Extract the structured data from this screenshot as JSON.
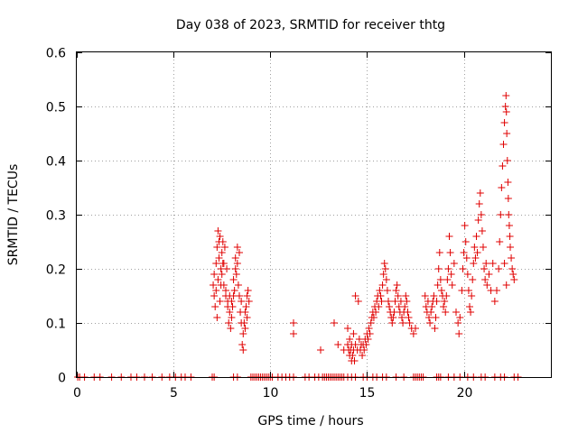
{
  "chart_data": {
    "type": "scatter",
    "title": "Day 038 of 2023, SRMTID for receiver thtg",
    "xlabel": "GPS time / hours",
    "ylabel": "SRMTID / TECUs",
    "xlim": [
      0,
      24.5
    ],
    "ylim": [
      0,
      0.6
    ],
    "xticks": [
      0,
      5,
      10,
      15,
      20
    ],
    "yticks": [
      0,
      0.1,
      0.2,
      0.3,
      0.4,
      0.5,
      0.6
    ],
    "xtick_labels": [
      "0",
      "5",
      "10",
      "15",
      "20"
    ],
    "ytick_labels": [
      "0",
      "0.1",
      "0.2",
      "0.3",
      "0.4",
      "0.5",
      "0.6"
    ],
    "grid": true,
    "marker": "+",
    "series": [
      {
        "name": "SRMTID",
        "color": "#e00000",
        "points": [
          [
            0.05,
            0
          ],
          [
            0.15,
            0
          ],
          [
            0.4,
            0
          ],
          [
            0.9,
            0
          ],
          [
            1.2,
            0
          ],
          [
            1.8,
            0
          ],
          [
            2.3,
            0
          ],
          [
            2.8,
            0
          ],
          [
            3.1,
            0
          ],
          [
            3.5,
            0
          ],
          [
            3.9,
            0
          ],
          [
            4.4,
            0
          ],
          [
            4.8,
            0
          ],
          [
            5.1,
            0
          ],
          [
            5.4,
            0
          ],
          [
            5.6,
            0
          ],
          [
            5.9,
            0
          ],
          [
            7.0,
            0
          ],
          [
            7.1,
            0
          ],
          [
            8.1,
            0
          ],
          [
            8.3,
            0
          ],
          [
            9.0,
            0
          ],
          [
            9.1,
            0
          ],
          [
            9.2,
            0
          ],
          [
            9.3,
            0
          ],
          [
            9.4,
            0
          ],
          [
            9.5,
            0
          ],
          [
            9.6,
            0
          ],
          [
            9.7,
            0
          ],
          [
            9.8,
            0
          ],
          [
            9.9,
            0
          ],
          [
            10.0,
            0
          ],
          [
            10.1,
            0
          ],
          [
            10.4,
            0
          ],
          [
            10.6,
            0
          ],
          [
            10.8,
            0
          ],
          [
            11.0,
            0
          ],
          [
            11.2,
            0
          ],
          [
            11.8,
            0
          ],
          [
            12.0,
            0
          ],
          [
            12.3,
            0
          ],
          [
            12.5,
            0
          ],
          [
            12.7,
            0
          ],
          [
            12.8,
            0
          ],
          [
            12.9,
            0
          ],
          [
            13.0,
            0
          ],
          [
            13.1,
            0
          ],
          [
            13.2,
            0
          ],
          [
            13.3,
            0
          ],
          [
            13.4,
            0
          ],
          [
            13.5,
            0
          ],
          [
            13.6,
            0
          ],
          [
            13.7,
            0
          ],
          [
            13.8,
            0
          ],
          [
            14.0,
            0
          ],
          [
            14.2,
            0
          ],
          [
            14.4,
            0
          ],
          [
            14.8,
            0
          ],
          [
            15.0,
            0
          ],
          [
            15.3,
            0
          ],
          [
            15.5,
            0
          ],
          [
            15.8,
            0
          ],
          [
            16.0,
            0
          ],
          [
            16.5,
            0
          ],
          [
            16.9,
            0
          ],
          [
            17.4,
            0
          ],
          [
            17.5,
            0
          ],
          [
            17.6,
            0
          ],
          [
            17.7,
            0
          ],
          [
            17.8,
            0
          ],
          [
            17.9,
            0
          ],
          [
            18.6,
            0
          ],
          [
            18.7,
            0
          ],
          [
            18.8,
            0
          ],
          [
            19.2,
            0
          ],
          [
            19.5,
            0
          ],
          [
            19.8,
            0
          ],
          [
            20.2,
            0
          ],
          [
            20.5,
            0
          ],
          [
            20.9,
            0
          ],
          [
            21.1,
            0
          ],
          [
            21.6,
            0
          ],
          [
            21.9,
            0
          ],
          [
            22.1,
            0
          ],
          [
            22.6,
            0
          ],
          [
            22.8,
            0
          ],
          [
            7.05,
            0.17
          ],
          [
            7.1,
            0.15
          ],
          [
            7.1,
            0.19
          ],
          [
            7.15,
            0.13
          ],
          [
            7.2,
            0.16
          ],
          [
            7.2,
            0.21
          ],
          [
            7.25,
            0.11
          ],
          [
            7.25,
            0.24
          ],
          [
            7.3,
            0.27
          ],
          [
            7.3,
            0.18
          ],
          [
            7.35,
            0.22
          ],
          [
            7.4,
            0.26
          ],
          [
            7.4,
            0.14
          ],
          [
            7.45,
            0.2
          ],
          [
            7.5,
            0.23
          ],
          [
            7.5,
            0.19
          ],
          [
            7.55,
            0.25
          ],
          [
            7.6,
            0.17
          ],
          [
            7.6,
            0.21
          ],
          [
            7.65,
            0.24
          ],
          [
            7.7,
            0.16
          ],
          [
            7.7,
            0.15
          ],
          [
            7.75,
            0.2
          ],
          [
            7.8,
            0.13
          ],
          [
            7.8,
            0.14
          ],
          [
            7.85,
            0.1
          ],
          [
            7.9,
            0.12
          ],
          [
            7.9,
            0.15
          ],
          [
            7.95,
            0.09
          ],
          [
            8.0,
            0.11
          ],
          [
            8.0,
            0.14
          ],
          [
            8.05,
            0.13
          ],
          [
            8.1,
            0.15
          ],
          [
            8.1,
            0.18
          ],
          [
            8.15,
            0.16
          ],
          [
            8.2,
            0.2
          ],
          [
            8.2,
            0.22
          ],
          [
            8.25,
            0.19
          ],
          [
            8.3,
            0.21
          ],
          [
            8.3,
            0.24
          ],
          [
            8.35,
            0.17
          ],
          [
            8.4,
            0.15
          ],
          [
            8.4,
            0.23
          ],
          [
            8.45,
            0.12
          ],
          [
            8.5,
            0.1
          ],
          [
            8.5,
            0.14
          ],
          [
            8.55,
            0.06
          ],
          [
            8.6,
            0.05
          ],
          [
            8.6,
            0.08
          ],
          [
            8.65,
            0.1
          ],
          [
            8.7,
            0.12
          ],
          [
            8.7,
            0.09
          ],
          [
            8.75,
            0.13
          ],
          [
            8.8,
            0.15
          ],
          [
            8.8,
            0.11
          ],
          [
            8.85,
            0.16
          ],
          [
            8.9,
            0.14
          ],
          [
            7.35,
            0.25
          ],
          [
            7.45,
            0.17
          ],
          [
            7.55,
            0.21
          ],
          [
            11.2,
            0.1
          ],
          [
            11.2,
            0.08
          ],
          [
            12.6,
            0.05
          ],
          [
            13.3,
            0.1
          ],
          [
            13.5,
            0.06
          ],
          [
            13.8,
            0.05
          ],
          [
            14.0,
            0.09
          ],
          [
            14.0,
            0.06
          ],
          [
            14.05,
            0.05
          ],
          [
            14.1,
            0.04
          ],
          [
            14.1,
            0.07
          ],
          [
            14.15,
            0.05
          ],
          [
            14.2,
            0.03
          ],
          [
            14.2,
            0.06
          ],
          [
            14.25,
            0.04
          ],
          [
            14.3,
            0.08
          ],
          [
            14.3,
            0.05
          ],
          [
            14.35,
            0.03
          ],
          [
            14.4,
            0.06
          ],
          [
            14.4,
            0.15
          ],
          [
            14.5,
            0.05
          ],
          [
            14.55,
            0.14
          ],
          [
            14.6,
            0.07
          ],
          [
            14.65,
            0.05
          ],
          [
            14.7,
            0.06
          ],
          [
            14.75,
            0.04
          ],
          [
            14.8,
            0.06
          ],
          [
            14.85,
            0.05
          ],
          [
            14.9,
            0.07
          ],
          [
            14.95,
            0.06
          ],
          [
            15.0,
            0.08
          ],
          [
            15.05,
            0.07
          ],
          [
            15.1,
            0.09
          ],
          [
            15.15,
            0.08
          ],
          [
            15.2,
            0.1
          ],
          [
            15.25,
            0.11
          ],
          [
            15.3,
            0.12
          ],
          [
            15.35,
            0.11
          ],
          [
            15.4,
            0.13
          ],
          [
            15.45,
            0.12
          ],
          [
            15.5,
            0.14
          ],
          [
            15.55,
            0.15
          ],
          [
            15.6,
            0.13
          ],
          [
            15.65,
            0.16
          ],
          [
            15.7,
            0.15
          ],
          [
            15.75,
            0.14
          ],
          [
            15.8,
            0.17
          ],
          [
            15.85,
            0.19
          ],
          [
            15.9,
            0.21
          ],
          [
            15.95,
            0.2
          ],
          [
            16.0,
            0.18
          ],
          [
            16.05,
            0.16
          ],
          [
            16.1,
            0.14
          ],
          [
            16.15,
            0.13
          ],
          [
            16.2,
            0.12
          ],
          [
            16.25,
            0.11
          ],
          [
            16.3,
            0.1
          ],
          [
            16.35,
            0.11
          ],
          [
            16.4,
            0.12
          ],
          [
            16.45,
            0.14
          ],
          [
            16.5,
            0.16
          ],
          [
            16.55,
            0.17
          ],
          [
            16.6,
            0.15
          ],
          [
            16.65,
            0.13
          ],
          [
            16.7,
            0.12
          ],
          [
            16.75,
            0.14
          ],
          [
            16.8,
            0.11
          ],
          [
            16.85,
            0.1
          ],
          [
            16.9,
            0.12
          ],
          [
            16.95,
            0.13
          ],
          [
            17.0,
            0.15
          ],
          [
            17.05,
            0.14
          ],
          [
            17.1,
            0.12
          ],
          [
            17.15,
            0.11
          ],
          [
            17.2,
            0.1
          ],
          [
            17.3,
            0.09
          ],
          [
            17.4,
            0.08
          ],
          [
            17.5,
            0.09
          ],
          [
            18.0,
            0.15
          ],
          [
            18.05,
            0.13
          ],
          [
            18.1,
            0.12
          ],
          [
            18.15,
            0.14
          ],
          [
            18.2,
            0.11
          ],
          [
            18.25,
            0.1
          ],
          [
            18.3,
            0.12
          ],
          [
            18.35,
            0.13
          ],
          [
            18.4,
            0.14
          ],
          [
            18.45,
            0.15
          ],
          [
            18.5,
            0.09
          ],
          [
            18.55,
            0.11
          ],
          [
            18.6,
            0.14
          ],
          [
            18.65,
            0.17
          ],
          [
            18.7,
            0.2
          ],
          [
            18.75,
            0.23
          ],
          [
            18.8,
            0.18
          ],
          [
            18.85,
            0.16
          ],
          [
            18.9,
            0.15
          ],
          [
            18.95,
            0.13
          ],
          [
            19.0,
            0.14
          ],
          [
            19.05,
            0.12
          ],
          [
            19.1,
            0.15
          ],
          [
            19.15,
            0.18
          ],
          [
            19.2,
            0.2
          ],
          [
            19.25,
            0.26
          ],
          [
            19.3,
            0.23
          ],
          [
            19.35,
            0.19
          ],
          [
            19.4,
            0.17
          ],
          [
            19.5,
            0.21
          ],
          [
            19.6,
            0.12
          ],
          [
            19.7,
            0.1
          ],
          [
            19.75,
            0.08
          ],
          [
            19.8,
            0.11
          ],
          [
            19.9,
            0.16
          ],
          [
            19.95,
            0.2
          ],
          [
            20.0,
            0.23
          ],
          [
            20.05,
            0.28
          ],
          [
            20.1,
            0.25
          ],
          [
            20.15,
            0.22
          ],
          [
            20.2,
            0.19
          ],
          [
            20.25,
            0.16
          ],
          [
            20.3,
            0.13
          ],
          [
            20.35,
            0.12
          ],
          [
            20.4,
            0.15
          ],
          [
            20.45,
            0.18
          ],
          [
            20.5,
            0.21
          ],
          [
            20.55,
            0.24
          ],
          [
            20.6,
            0.22
          ],
          [
            20.65,
            0.26
          ],
          [
            20.7,
            0.23
          ],
          [
            20.75,
            0.29
          ],
          [
            20.8,
            0.32
          ],
          [
            20.85,
            0.34
          ],
          [
            20.9,
            0.3
          ],
          [
            20.95,
            0.27
          ],
          [
            21.0,
            0.24
          ],
          [
            21.05,
            0.2
          ],
          [
            21.1,
            0.18
          ],
          [
            21.15,
            0.21
          ],
          [
            21.2,
            0.17
          ],
          [
            21.3,
            0.19
          ],
          [
            21.4,
            0.16
          ],
          [
            21.5,
            0.21
          ],
          [
            21.6,
            0.14
          ],
          [
            21.7,
            0.16
          ],
          [
            21.8,
            0.2
          ],
          [
            21.85,
            0.25
          ],
          [
            21.9,
            0.3
          ],
          [
            21.95,
            0.35
          ],
          [
            22.0,
            0.39
          ],
          [
            22.05,
            0.43
          ],
          [
            22.1,
            0.47
          ],
          [
            22.15,
            0.5
          ],
          [
            22.18,
            0.52
          ],
          [
            22.2,
            0.49
          ],
          [
            22.22,
            0.45
          ],
          [
            22.25,
            0.4
          ],
          [
            22.28,
            0.36
          ],
          [
            22.3,
            0.33
          ],
          [
            22.32,
            0.3
          ],
          [
            22.35,
            0.28
          ],
          [
            22.38,
            0.26
          ],
          [
            22.4,
            0.24
          ],
          [
            22.45,
            0.22
          ],
          [
            22.5,
            0.2
          ],
          [
            22.55,
            0.19
          ],
          [
            22.6,
            0.18
          ],
          [
            22.1,
            0.21
          ],
          [
            22.2,
            0.17
          ]
        ]
      }
    ]
  }
}
